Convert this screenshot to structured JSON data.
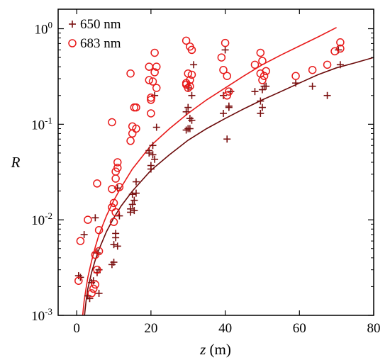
{
  "chart_data": {
    "type": "scatter",
    "xlabel_var": "z",
    "xlabel_unit": " (m)",
    "ylabel": "R",
    "xlim": [
      -5,
      80
    ],
    "ylim": [
      0.001,
      1.6
    ],
    "yscale": "log",
    "x_ticks": [
      0,
      20,
      40,
      60,
      80
    ],
    "x_tick_labels": [
      "0",
      "20",
      "40",
      "60",
      "80"
    ],
    "y_ticks": [
      0.001,
      0.01,
      0.1,
      1
    ],
    "y_tick_labels": [
      {
        "base": "10",
        "exp": "-3"
      },
      {
        "base": "10",
        "exp": "-2"
      },
      {
        "base": "10",
        "exp": "-1"
      },
      {
        "base": "10",
        "exp": "0"
      }
    ],
    "legend_position": "top-left",
    "series": [
      {
        "name": "650 nm",
        "marker": "plus",
        "color": "#7a1010",
        "points": [
          [
            0.5,
            0.0026
          ],
          [
            1,
            0.0025
          ],
          [
            2,
            0.007
          ],
          [
            3,
            0.0016
          ],
          [
            3.5,
            0.0015
          ],
          [
            4,
            0.0022
          ],
          [
            4.5,
            0.0023
          ],
          [
            5,
            0.0105
          ],
          [
            5.5,
            0.0045
          ],
          [
            5.5,
            0.0028
          ],
          [
            6,
            0.003
          ],
          [
            6,
            0.0017
          ],
          [
            9.5,
            0.0034
          ],
          [
            10,
            0.0036
          ],
          [
            10,
            0.0055
          ],
          [
            10.5,
            0.0065
          ],
          [
            10.5,
            0.0072
          ],
          [
            11,
            0.0053
          ],
          [
            11,
            0.0215
          ],
          [
            11.5,
            0.011
          ],
          [
            14.5,
            0.012
          ],
          [
            14.5,
            0.013
          ],
          [
            15,
            0.0145
          ],
          [
            15,
            0.0185
          ],
          [
            15.5,
            0.016
          ],
          [
            15.5,
            0.0125
          ],
          [
            16,
            0.025
          ],
          [
            16,
            0.019
          ],
          [
            19.5,
            0.05
          ],
          [
            19.5,
            0.053
          ],
          [
            20,
            0.034
          ],
          [
            20,
            0.037
          ],
          [
            20.5,
            0.048
          ],
          [
            20.5,
            0.06
          ],
          [
            21,
            0.043
          ],
          [
            21.5,
            0.093
          ],
          [
            21,
            0.2
          ],
          [
            29.5,
            0.087
          ],
          [
            29.5,
            0.135
          ],
          [
            30,
            0.15
          ],
          [
            30,
            0.09
          ],
          [
            30.5,
            0.09
          ],
          [
            30.5,
            0.115
          ],
          [
            31,
            0.11
          ],
          [
            31,
            0.2
          ],
          [
            31.5,
            0.42
          ],
          [
            30,
            0.24
          ],
          [
            39.5,
            0.13
          ],
          [
            39.5,
            0.2
          ],
          [
            40,
            0.6
          ],
          [
            40.5,
            0.07
          ],
          [
            41,
            0.15
          ],
          [
            41,
            0.155
          ],
          [
            41.5,
            0.22
          ],
          [
            48,
            0.22
          ],
          [
            49.5,
            0.13
          ],
          [
            49.5,
            0.175
          ],
          [
            50,
            0.15
          ],
          [
            50,
            0.23
          ],
          [
            50.5,
            0.25
          ],
          [
            51,
            0.25
          ],
          [
            59,
            0.27
          ],
          [
            63.5,
            0.25
          ],
          [
            67.5,
            0.2
          ],
          [
            70.5,
            0.6
          ],
          [
            71,
            0.42
          ]
        ]
      },
      {
        "name": "683 nm",
        "marker": "circle",
        "color": "#e81a1a",
        "points": [
          [
            0.5,
            0.0023
          ],
          [
            1,
            0.006
          ],
          [
            3,
            0.01
          ],
          [
            4,
            0.0017
          ],
          [
            4.5,
            0.0019
          ],
          [
            5,
            0.0043
          ],
          [
            5,
            0.0021
          ],
          [
            5.5,
            0.024
          ],
          [
            5.5,
            0.003
          ],
          [
            6,
            0.0078
          ],
          [
            6,
            0.0047
          ],
          [
            9.5,
            0.105
          ],
          [
            9.5,
            0.0135
          ],
          [
            9.5,
            0.021
          ],
          [
            10,
            0.0095
          ],
          [
            10,
            0.015
          ],
          [
            10.5,
            0.012
          ],
          [
            10.5,
            0.027
          ],
          [
            10.5,
            0.032
          ],
          [
            11,
            0.04
          ],
          [
            11,
            0.035
          ],
          [
            11.5,
            0.022
          ],
          [
            14.5,
            0.34
          ],
          [
            14.5,
            0.067
          ],
          [
            15,
            0.08
          ],
          [
            15,
            0.095
          ],
          [
            15.5,
            0.15
          ],
          [
            16,
            0.09
          ],
          [
            16,
            0.15
          ],
          [
            19.5,
            0.4
          ],
          [
            19.5,
            0.29
          ],
          [
            20,
            0.19
          ],
          [
            20,
            0.18
          ],
          [
            20,
            0.13
          ],
          [
            20.5,
            0.28
          ],
          [
            21,
            0.35
          ],
          [
            21,
            0.56
          ],
          [
            21.5,
            0.4
          ],
          [
            21.5,
            0.24
          ],
          [
            29.5,
            0.75
          ],
          [
            29.5,
            0.26
          ],
          [
            29.5,
            0.27
          ],
          [
            30,
            0.24
          ],
          [
            30,
            0.34
          ],
          [
            30.5,
            0.25
          ],
          [
            30.5,
            0.29
          ],
          [
            30.5,
            0.65
          ],
          [
            31,
            0.33
          ],
          [
            31,
            0.6
          ],
          [
            39,
            0.5
          ],
          [
            39.5,
            0.37
          ],
          [
            40,
            0.71
          ],
          [
            40.5,
            0.32
          ],
          [
            40.5,
            0.2
          ],
          [
            41,
            0.22
          ],
          [
            48,
            0.42
          ],
          [
            49.5,
            0.56
          ],
          [
            49.5,
            0.34
          ],
          [
            50,
            0.46
          ],
          [
            50,
            0.29
          ],
          [
            50.5,
            0.32
          ],
          [
            51,
            0.36
          ],
          [
            59,
            0.32
          ],
          [
            63.5,
            0.37
          ],
          [
            67.5,
            0.42
          ],
          [
            69.5,
            0.58
          ],
          [
            71,
            0.62
          ],
          [
            71,
            0.72
          ]
        ]
      }
    ],
    "fits": [
      {
        "series": "650 nm",
        "color": "#6b0a0a",
        "points": [
          [
            2.1,
            0.001
          ],
          [
            2.5,
            0.0014
          ],
          [
            3,
            0.0019
          ],
          [
            4,
            0.0028
          ],
          [
            5,
            0.0038
          ],
          [
            6,
            0.0049
          ],
          [
            8,
            0.0075
          ],
          [
            10,
            0.0105
          ],
          [
            12,
            0.014
          ],
          [
            15,
            0.02
          ],
          [
            20,
            0.033
          ],
          [
            25,
            0.048
          ],
          [
            30,
            0.068
          ],
          [
            35,
            0.09
          ],
          [
            40,
            0.115
          ],
          [
            45,
            0.145
          ],
          [
            50,
            0.18
          ],
          [
            55,
            0.22
          ],
          [
            60,
            0.27
          ],
          [
            65,
            0.33
          ],
          [
            70,
            0.39
          ],
          [
            75,
            0.44
          ],
          [
            80,
            0.5
          ]
        ]
      },
      {
        "series": "683 nm",
        "color": "#e81a1a",
        "points": [
          [
            1.6,
            0.001
          ],
          [
            2,
            0.0014
          ],
          [
            2.5,
            0.0019
          ],
          [
            3,
            0.0025
          ],
          [
            4,
            0.0037
          ],
          [
            5,
            0.0052
          ],
          [
            6,
            0.007
          ],
          [
            8,
            0.011
          ],
          [
            10,
            0.016
          ],
          [
            12,
            0.022
          ],
          [
            15,
            0.034
          ],
          [
            20,
            0.06
          ],
          [
            25,
            0.09
          ],
          [
            30,
            0.13
          ],
          [
            35,
            0.18
          ],
          [
            40,
            0.24
          ],
          [
            45,
            0.32
          ],
          [
            50,
            0.42
          ],
          [
            55,
            0.53
          ],
          [
            60,
            0.66
          ],
          [
            65,
            0.82
          ],
          [
            70,
            1.03
          ]
        ]
      }
    ]
  }
}
